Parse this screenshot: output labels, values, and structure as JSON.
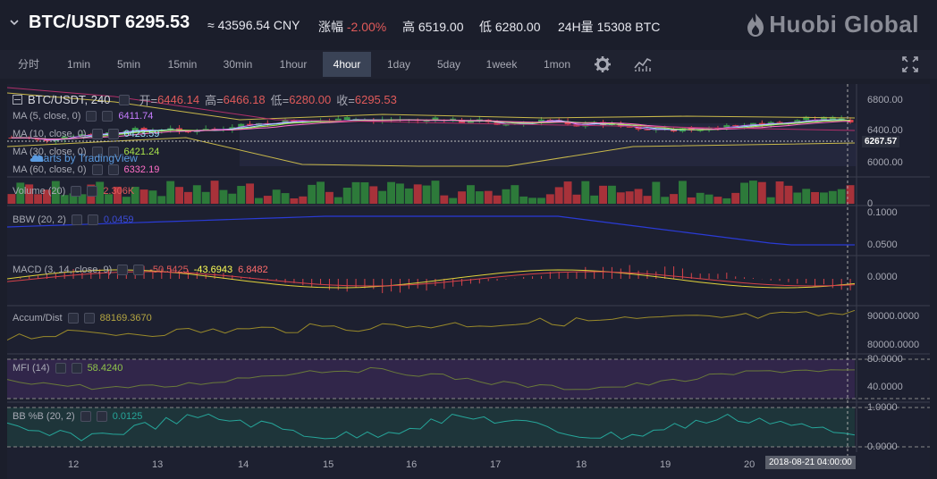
{
  "header": {
    "pair": "BTC/USDT",
    "price": "6295.53",
    "cny": "≈ 43596.54 CNY",
    "change_label": "涨幅",
    "change_value": "-2.00%",
    "high_label": "高",
    "high_value": "6519.00",
    "low_label": "低",
    "low_value": "6280.00",
    "vol_label": "24H量",
    "vol_value": "15308 BTC",
    "brand": "Huobi Global"
  },
  "toolbar": {
    "timeframes": [
      "分时",
      "1min",
      "5min",
      "15min",
      "30min",
      "1hour",
      "4hour",
      "1day",
      "5day",
      "1week",
      "1mon"
    ],
    "active": "4hour"
  },
  "chart": {
    "symbol_legend": "BTC/USDT, 240",
    "ohlc": {
      "o_label": "开=",
      "o": "6446.14",
      "h_label": "高=",
      "h": "6466.18",
      "l_label": "低=",
      "l": "6280.00",
      "c_label": "收=",
      "c": "6295.53"
    },
    "ma": [
      {
        "label": "MA (5, close, 0)",
        "value": "6411.74",
        "color": "#c77dff"
      },
      {
        "label": "MA (10, close, 0)",
        "value": "6423.59",
        "color": "#9be7ff"
      },
      {
        "label": "MA (30, close, 0)",
        "value": "6421.24",
        "color": "#a9e34b"
      },
      {
        "label": "MA (60, close, 0)",
        "value": "6332.19",
        "color": "#ff6ec7"
      }
    ],
    "watermark": "charts by TradingView",
    "price_axis": [
      "6800.00",
      "6400.00",
      "6000.00"
    ],
    "last_price_tag": "6267.57",
    "volume": {
      "label": "Volume (20)",
      "value": "2.306K",
      "axis": "0"
    },
    "bbw": {
      "label": "BBW (20, 2)",
      "value": "0.0459",
      "axis": [
        "0.1000",
        "0.0500"
      ]
    },
    "macd": {
      "label": "MACD (3, 14, close, 9)",
      "v1": "-50.5425",
      "v2": "-43.6943",
      "v3": "6.8482",
      "axis": "0.0000"
    },
    "accum": {
      "label": "Accum/Dist",
      "value": "88169.3670",
      "axis": [
        "90000.0000",
        "80000.0000"
      ]
    },
    "mfi": {
      "label": "MFI (14)",
      "value": "58.4240",
      "axis": [
        "80.0000",
        "40.0000"
      ]
    },
    "bbpb": {
      "label": "BB %B (20, 2)",
      "value": "0.0125",
      "axis": [
        "1.0000",
        "0.0000"
      ]
    },
    "x_axis": [
      "12",
      "13",
      "14",
      "15",
      "16",
      "17",
      "18",
      "19",
      "20"
    ],
    "crosshair_time": "2018-08-21 04:00:00"
  }
}
